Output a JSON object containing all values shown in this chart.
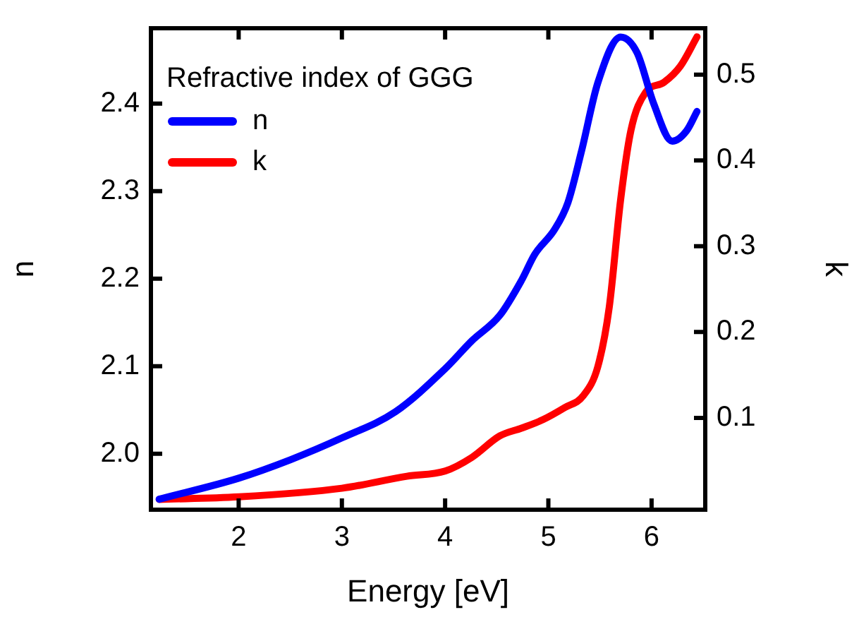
{
  "chart_data": {
    "type": "line",
    "xlabel": "Energy [eV]",
    "ylabel": "n",
    "y2label": "k",
    "legend_title": "Refractive index of GGG",
    "legend": "top left",
    "marker": "none",
    "line_style": "solid",
    "grid": false,
    "xlim": [
      1.15,
      6.52
    ],
    "xticks": [
      2,
      3,
      4,
      5,
      6
    ],
    "ylim": [
      1.936,
      2.486
    ],
    "yticks": [
      {
        "value": 2,
        "label": "2.0"
      },
      2.1,
      2.2,
      2.3,
      2.4
    ],
    "y2lim": [
      -0.007,
      0.554
    ],
    "y2ticks": [
      0.1,
      0.2,
      0.3,
      0.4,
      0.5
    ],
    "series": [
      {
        "name": "n",
        "color": "#0000ff",
        "x": [
          1.23,
          2,
          2.5,
          3,
          3.52,
          4,
          4.26,
          4.53,
          4.74,
          4.87,
          5.06,
          5.19,
          5.32,
          5.48,
          5.7,
          5.86,
          6.02,
          6.2,
          6.34,
          6.44
        ],
        "values": [
          1.948,
          1.972,
          1.993,
          2.018,
          2.048,
          2.097,
          2.129,
          2.158,
          2.198,
          2.228,
          2.256,
          2.287,
          2.345,
          2.424,
          2.476,
          2.458,
          2.4,
          2.357,
          2.369,
          2.391
        ]
      },
      {
        "name": "k",
        "color": "#ff0000",
        "axis": "y2",
        "x": [
          1.23,
          2,
          3,
          3.63,
          4,
          4.26,
          4.53,
          4.74,
          4.95,
          5.16,
          5.34,
          5.48,
          5.59,
          5.7,
          5.8,
          5.94,
          6.12,
          6.28,
          6.44
        ],
        "values": [
          0.005,
          0.008,
          0.018,
          0.032,
          0.038,
          0.054,
          0.079,
          0.088,
          0.098,
          0.112,
          0.126,
          0.16,
          0.229,
          0.354,
          0.435,
          0.479,
          0.491,
          0.51,
          0.544
        ]
      }
    ]
  }
}
